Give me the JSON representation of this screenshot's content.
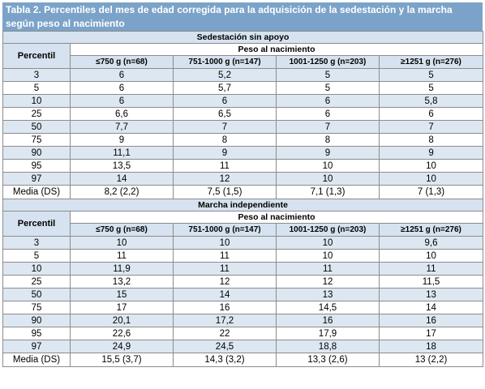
{
  "title": "Tabla 2. Percentiles del mes de edad corregida para la adquisición de la sedestación y la marcha según peso al nacimiento",
  "colors": {
    "header_bg": "#7ba3c9",
    "band_bg": "#d6e2ef",
    "alt_row": "#dde7f2"
  },
  "columns": [
    "≤750 g (n=68)",
    "751-1000 g (n=147)",
    "1001-1250 g (n=203)",
    "≥1251 g (n=276)"
  ],
  "percentil_label": "Percentil",
  "peso_label": "Peso al nacimiento",
  "media_label": "Media (DS)",
  "sections": [
    {
      "title": "Sedestación sin apoyo",
      "rows": [
        {
          "p": "3",
          "v": [
            "6",
            "5,2",
            "5",
            "5"
          ]
        },
        {
          "p": "5",
          "v": [
            "6",
            "5,7",
            "5",
            "5"
          ]
        },
        {
          "p": "10",
          "v": [
            "6",
            "6",
            "6",
            "5,8"
          ]
        },
        {
          "p": "25",
          "v": [
            "6,6",
            "6,5",
            "6",
            "6"
          ]
        },
        {
          "p": "50",
          "v": [
            "7,7",
            "7",
            "7",
            "7"
          ]
        },
        {
          "p": "75",
          "v": [
            "9",
            "8",
            "8",
            "8"
          ]
        },
        {
          "p": "90",
          "v": [
            "11,1",
            "9",
            "9",
            "9"
          ]
        },
        {
          "p": "95",
          "v": [
            "13,5",
            "11",
            "10",
            "10"
          ]
        },
        {
          "p": "97",
          "v": [
            "14",
            "12",
            "10",
            "10"
          ]
        }
      ],
      "media": [
        "8,2 (2,2)",
        "7,5 (1,5)",
        "7,1 (1,3)",
        "7 (1,3)"
      ]
    },
    {
      "title": "Marcha independiente",
      "rows": [
        {
          "p": "3",
          "v": [
            "10",
            "10",
            "10",
            "9,6"
          ]
        },
        {
          "p": "5",
          "v": [
            "11",
            "11",
            "10",
            "10"
          ]
        },
        {
          "p": "10",
          "v": [
            "11,9",
            "11",
            "11",
            "11"
          ]
        },
        {
          "p": "25",
          "v": [
            "13,2",
            "12",
            "12",
            "11,5"
          ]
        },
        {
          "p": "50",
          "v": [
            "15",
            "14",
            "13",
            "13"
          ]
        },
        {
          "p": "75",
          "v": [
            "17",
            "16",
            "14,5",
            "14"
          ]
        },
        {
          "p": "90",
          "v": [
            "20,1",
            "17,2",
            "16",
            "16"
          ]
        },
        {
          "p": "95",
          "v": [
            "22,6",
            "22",
            "17,9",
            "17"
          ]
        },
        {
          "p": "97",
          "v": [
            "24,9",
            "24,5",
            "18,8",
            "18"
          ]
        }
      ],
      "media": [
        "15,5 (3,7)",
        "14,3 (3,2)",
        "13,3 (2,6)",
        "13 (2,2)"
      ]
    }
  ]
}
